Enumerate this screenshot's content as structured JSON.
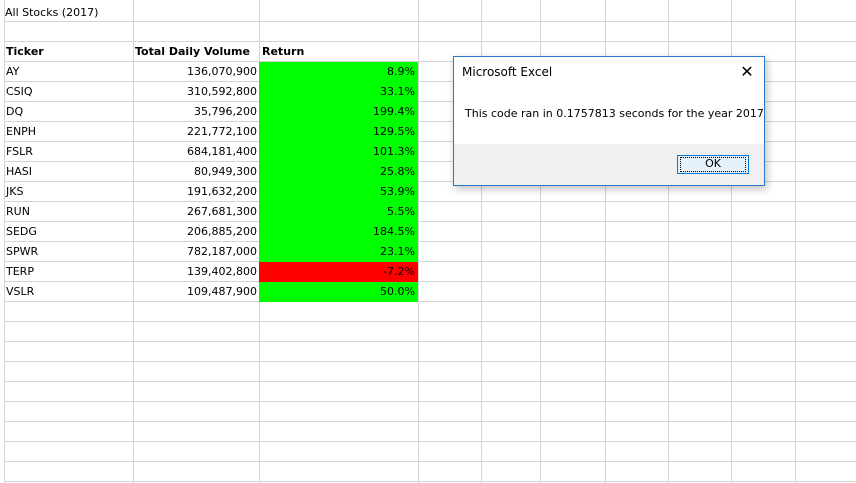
{
  "sheet": {
    "title": "All Stocks (2017)",
    "headers": {
      "ticker": "Ticker",
      "volume": "Total Daily Volume",
      "return": "Return"
    },
    "rows": [
      {
        "ticker": "AY",
        "volume": "136,070,900",
        "return": "8.9%",
        "status": "positive"
      },
      {
        "ticker": "CSIQ",
        "volume": "310,592,800",
        "return": "33.1%",
        "status": "positive"
      },
      {
        "ticker": "DQ",
        "volume": "35,796,200",
        "return": "199.4%",
        "status": "positive"
      },
      {
        "ticker": "ENPH",
        "volume": "221,772,100",
        "return": "129.5%",
        "status": "positive"
      },
      {
        "ticker": "FSLR",
        "volume": "684,181,400",
        "return": "101.3%",
        "status": "positive"
      },
      {
        "ticker": "HASI",
        "volume": "80,949,300",
        "return": "25.8%",
        "status": "positive"
      },
      {
        "ticker": "JKS",
        "volume": "191,632,200",
        "return": "53.9%",
        "status": "positive"
      },
      {
        "ticker": "RUN",
        "volume": "267,681,300",
        "return": "5.5%",
        "status": "positive"
      },
      {
        "ticker": "SEDG",
        "volume": "206,885,200",
        "return": "184.5%",
        "status": "positive"
      },
      {
        "ticker": "SPWR",
        "volume": "782,187,000",
        "return": "23.1%",
        "status": "positive"
      },
      {
        "ticker": "TERP",
        "volume": "139,402,800",
        "return": "-7.2%",
        "status": "negative"
      },
      {
        "ticker": "VSLR",
        "volume": "109,487,900",
        "return": "50.0%",
        "status": "positive"
      }
    ]
  },
  "colors": {
    "positive_fill": "#00ff00",
    "negative_fill": "#ff0000",
    "gridline": "#d4d4d4",
    "dialog_border": "#2b78d0",
    "ok_button_border": "#0078d7"
  },
  "dialog": {
    "title": "Microsoft Excel",
    "close_icon": "close-icon",
    "message": "This code ran in 0.1757813 seconds for the year 2017",
    "ok_label": "OK"
  }
}
